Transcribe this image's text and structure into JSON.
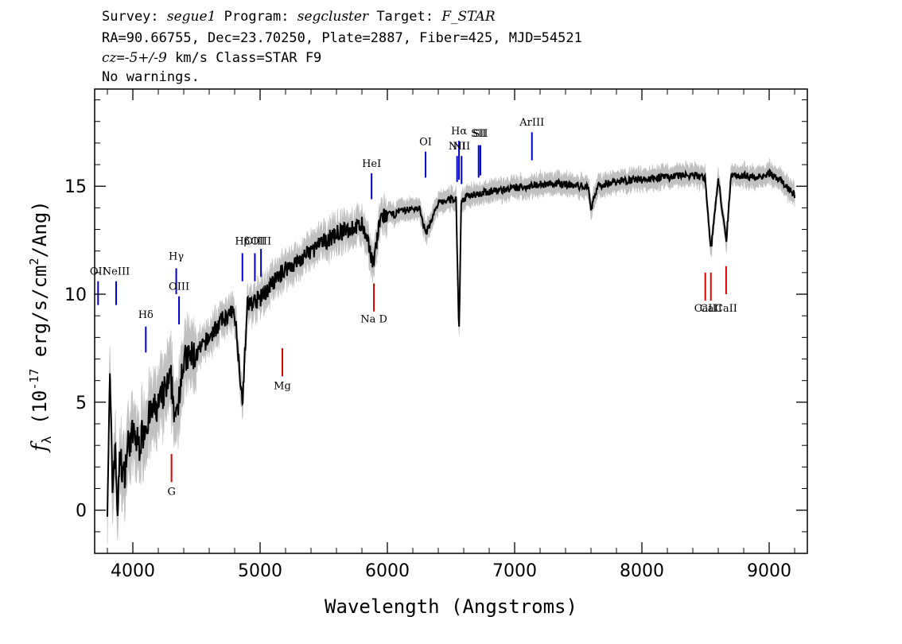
{
  "header": {
    "survey_label": "Survey: ",
    "survey": "segue1",
    "program_label": " Program: ",
    "program": "segcluster",
    "target_label": " Target: ",
    "target": "F_STAR",
    "line2": "RA=90.66755, Dec=23.70250, Plate=2887, Fiber=425, MJD=54521",
    "cz_symbol": "cz",
    "cz_value": "=-5+/-9",
    "cz_rest": " km/s Class=STAR F9",
    "line4": "No warnings."
  },
  "chart_data": {
    "type": "line",
    "xlabel": "Wavelength (Angstroms)",
    "ylabel": "f_λ (10^-17 erg/s/cm^2/Ang)",
    "xlim": [
      3700,
      9300
    ],
    "ylim": [
      -2,
      19.5
    ],
    "xticks": [
      4000,
      5000,
      6000,
      7000,
      8000,
      9000
    ],
    "yticks": [
      0,
      5,
      10,
      15
    ],
    "grid": false,
    "series": [
      {
        "color": "#000000",
        "x": [
          3800,
          3820,
          3840,
          3860,
          3880,
          3900,
          3930,
          3960,
          4000,
          4050,
          4100,
          4150,
          4200,
          4250,
          4300,
          4340,
          4380,
          4420,
          4500,
          4600,
          4700,
          4800,
          4861,
          4900,
          5000,
          5100,
          5200,
          5300,
          5400,
          5500,
          5600,
          5700,
          5800,
          5890,
          5950,
          6050,
          6150,
          6250,
          6300,
          6400,
          6500,
          6540,
          6563,
          6580,
          6650,
          6750,
          6850,
          7000,
          7100,
          7200,
          7300,
          7400,
          7500,
          7580,
          7600,
          7650,
          7700,
          7800,
          7900,
          8000,
          8100,
          8200,
          8300,
          8400,
          8498,
          8542,
          8600,
          8662,
          8700,
          8800,
          8900,
          9000,
          9100,
          9200
        ],
        "y": [
          0.5,
          6.0,
          1.0,
          3.0,
          0.0,
          2.5,
          1.5,
          3.0,
          3.5,
          3.0,
          4.0,
          4.5,
          4.8,
          5.5,
          6.0,
          4.0,
          6.5,
          7.0,
          7.2,
          8.0,
          8.8,
          9.2,
          5.0,
          9.5,
          9.8,
          10.5,
          11.2,
          11.5,
          12.0,
          12.4,
          12.8,
          13.0,
          13.2,
          11.5,
          13.6,
          13.7,
          13.9,
          14.0,
          12.8,
          14.2,
          14.4,
          14.4,
          8.0,
          14.3,
          14.6,
          14.7,
          14.8,
          14.9,
          15.0,
          15.1,
          15.1,
          15.1,
          15.0,
          15.0,
          13.9,
          15.0,
          15.1,
          15.2,
          15.3,
          15.3,
          15.4,
          15.4,
          15.5,
          15.5,
          15.4,
          12.0,
          15.4,
          12.4,
          15.5,
          15.5,
          15.4,
          15.6,
          15.2,
          14.6
        ]
      }
    ],
    "error_band_color": "#c0c0c0",
    "emission_lines": [
      {
        "label": "OII",
        "wavelength": 3727,
        "y_top": 10.6,
        "y_bottom": 9.5,
        "label_y": 10.9,
        "color": "#0000cc"
      },
      {
        "label": "NeIII",
        "wavelength": 3869,
        "y_top": 10.6,
        "y_bottom": 9.5,
        "label_y": 10.9,
        "color": "#0000cc"
      },
      {
        "label": "Hδ",
        "wavelength": 4102,
        "y_top": 8.5,
        "y_bottom": 7.3,
        "label_y": 8.9,
        "color": "#0000cc"
      },
      {
        "label": "Hγ",
        "wavelength": 4341,
        "y_top": 11.2,
        "y_bottom": 10.0,
        "label_y": 11.6,
        "color": "#0000cc"
      },
      {
        "label": "OIII",
        "wavelength": 4363,
        "y_top": 9.9,
        "y_bottom": 8.6,
        "label_y": 10.2,
        "color": "#0000cc"
      },
      {
        "label": "Hβ",
        "wavelength": 4861,
        "y_top": 11.9,
        "y_bottom": 10.6,
        "label_y": 12.3,
        "color": "#0000cc"
      },
      {
        "label": "OIII",
        "wavelength": 4959,
        "y_top": 11.9,
        "y_bottom": 10.6,
        "label_y": 12.3,
        "color": "#0000cc"
      },
      {
        "label": "OIII",
        "wavelength": 5007,
        "y_top": 12.1,
        "y_bottom": 10.8,
        "label_y": 12.3,
        "color": "#0000cc"
      },
      {
        "label": "HeI",
        "wavelength": 5876,
        "y_top": 15.6,
        "y_bottom": 14.4,
        "label_y": 15.9,
        "color": "#0000cc"
      },
      {
        "label": "OI",
        "wavelength": 6300,
        "y_top": 16.6,
        "y_bottom": 15.4,
        "label_y": 16.9,
        "color": "#0000cc"
      },
      {
        "label": "NII",
        "wavelength": 6548,
        "y_top": 16.4,
        "y_bottom": 15.2,
        "label_y": 16.7,
        "color": "#0000cc"
      },
      {
        "label": "Hα",
        "wavelength": 6563,
        "y_top": 17.1,
        "y_bottom": 15.3,
        "label_y": 17.4,
        "color": "#0000cc"
      },
      {
        "label": "NII",
        "wavelength": 6583,
        "y_top": 16.4,
        "y_bottom": 15.1,
        "label_y": 16.7,
        "color": "#0000cc"
      },
      {
        "label": "SII",
        "wavelength": 6717,
        "y_top": 16.9,
        "y_bottom": 15.4,
        "label_y": 17.3,
        "color": "#0000cc"
      },
      {
        "label": "SII",
        "wavelength": 6731,
        "y_top": 16.9,
        "y_bottom": 15.5,
        "label_y": 17.3,
        "color": "#0000cc"
      },
      {
        "label": "ArIII",
        "wavelength": 7136,
        "y_top": 17.5,
        "y_bottom": 16.2,
        "label_y": 17.8,
        "color": "#0000cc"
      }
    ],
    "absorption_lines": [
      {
        "label": "G",
        "wavelength": 4304,
        "y_top": 2.6,
        "y_bottom": 1.3,
        "label_y": 0.7,
        "color": "#dd0000"
      },
      {
        "label": "Mg",
        "wavelength": 5175,
        "y_top": 7.5,
        "y_bottom": 6.2,
        "label_y": 5.6,
        "color": "#dd0000"
      },
      {
        "label": "Na D",
        "wavelength": 5894,
        "y_top": 10.5,
        "y_bottom": 9.2,
        "label_y": 8.7,
        "color": "#dd0000"
      },
      {
        "label": "CaII",
        "wavelength": 8498,
        "y_top": 11.0,
        "y_bottom": 9.7,
        "label_y": 9.2,
        "color": "#dd0000"
      },
      {
        "label": "CaII",
        "wavelength": 8542,
        "y_top": 11.0,
        "y_bottom": 9.7,
        "label_y": 9.2,
        "color": "#dd0000"
      },
      {
        "label": "CaII",
        "wavelength": 8662,
        "y_top": 11.3,
        "y_bottom": 10.0,
        "label_y": 9.2,
        "color": "#dd0000"
      }
    ]
  }
}
